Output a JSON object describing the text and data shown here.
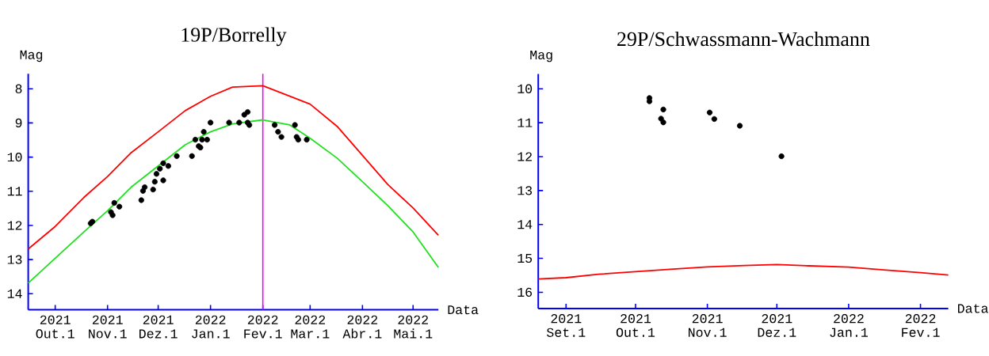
{
  "chart_data": [
    {
      "type": "scatter",
      "title": "19P/Borrelly",
      "xlabel": "Data",
      "ylabel": "Mag",
      "xlim": [
        "2021-09-15",
        "2022-05-16"
      ],
      "ylim": [
        14.47,
        7.56
      ],
      "xticks": [
        {
          "value": "2021-10-01",
          "label": "2021 Out.1"
        },
        {
          "value": "2021-11-01",
          "label": "2021 Nov.1"
        },
        {
          "value": "2021-12-01",
          "label": "2021 Dez.1"
        },
        {
          "value": "2022-01-01",
          "label": "2022 Jan.1"
        },
        {
          "value": "2022-02-01",
          "label": "2022 Fev.1"
        },
        {
          "value": "2022-03-01",
          "label": "2022 Mar.1"
        },
        {
          "value": "2022-04-01",
          "label": "2022 Abr.1"
        },
        {
          "value": "2022-05-01",
          "label": "2022 Mai.1"
        }
      ],
      "yticks": [
        8,
        9,
        10,
        11,
        12,
        13,
        14
      ],
      "ref_lines": [
        {
          "axis": "x",
          "value": "2022-02-01",
          "color": "#ff00ff"
        }
      ],
      "series": [
        {
          "type": "line",
          "marker": "none",
          "color": "#ff0000",
          "x": [
            "2021-09-15",
            "2021-10-01",
            "2021-10-18",
            "2021-11-01",
            "2021-11-15",
            "2021-12-01",
            "2021-12-17",
            "2022-01-01",
            "2022-01-14",
            "2022-02-01",
            "2022-02-17",
            "2022-03-01",
            "2022-03-17",
            "2022-04-01",
            "2022-04-16",
            "2022-05-01",
            "2022-05-16"
          ],
          "values": [
            12.69,
            12.03,
            11.18,
            10.57,
            9.87,
            9.26,
            8.64,
            8.22,
            7.95,
            7.91,
            8.22,
            8.45,
            9.1,
            9.95,
            10.8,
            11.49,
            12.29
          ]
        },
        {
          "type": "line",
          "marker": "none",
          "color": "#20e020",
          "x": [
            "2021-09-15",
            "2021-10-01",
            "2021-10-18",
            "2021-11-01",
            "2021-11-15",
            "2021-12-01",
            "2021-12-17",
            "2022-01-01",
            "2022-01-14",
            "2022-02-01",
            "2022-02-17",
            "2022-03-01",
            "2022-03-17",
            "2022-04-01",
            "2022-04-16",
            "2022-05-01",
            "2022-05-16"
          ],
          "values": [
            13.69,
            12.96,
            12.19,
            11.57,
            10.88,
            10.26,
            9.64,
            9.26,
            9.03,
            8.91,
            9.06,
            9.45,
            10.03,
            10.72,
            11.42,
            12.19,
            13.23
          ]
        },
        {
          "type": "scatter",
          "marker": "circle",
          "color": "#000000",
          "x": [
            "2021-10-22",
            "2021-10-23",
            "2021-11-03",
            "2021-11-04",
            "2021-11-05",
            "2021-11-08",
            "2021-11-21",
            "2021-11-22",
            "2021-11-23",
            "2021-11-28",
            "2021-11-29",
            "2021-11-30",
            "2021-12-02",
            "2021-12-04",
            "2021-12-04",
            "2021-12-07",
            "2021-12-12",
            "2021-12-21",
            "2021-12-23",
            "2021-12-25",
            "2021-12-26",
            "2021-12-27",
            "2021-12-28",
            "2021-12-30",
            "2022-01-01",
            "2022-01-12",
            "2022-01-18",
            "2022-01-21",
            "2022-01-23",
            "2022-01-23",
            "2022-01-24",
            "2022-02-08",
            "2022-02-10",
            "2022-02-12",
            "2022-02-20",
            "2022-02-21",
            "2022-02-22",
            "2022-02-27"
          ],
          "values": [
            11.94,
            11.89,
            11.61,
            11.7,
            11.34,
            11.45,
            11.26,
            10.99,
            10.88,
            10.95,
            10.72,
            10.49,
            10.34,
            10.18,
            10.68,
            10.26,
            9.97,
            9.97,
            9.49,
            9.68,
            9.72,
            9.49,
            9.26,
            9.49,
            8.99,
            8.99,
            8.99,
            8.76,
            8.68,
            8.99,
            9.06,
            9.06,
            9.26,
            9.41,
            9.06,
            9.41,
            9.49,
            9.49
          ]
        }
      ]
    },
    {
      "type": "scatter",
      "title": "29P/Schwassmann-Wachmann",
      "xlabel": "Data",
      "ylabel": "Mag",
      "xlim": [
        "2021-08-20",
        "2022-02-13"
      ],
      "ylim": [
        16.48,
        9.56
      ],
      "xticks": [
        {
          "value": "2021-09-01",
          "label": "2021 Set.1"
        },
        {
          "value": "2021-10-01",
          "label": "2021 Out.1"
        },
        {
          "value": "2021-11-01",
          "label": "2021 Nov.1"
        },
        {
          "value": "2021-12-01",
          "label": "2021 Dez.1"
        },
        {
          "value": "2022-01-01",
          "label": "2022 Jan.1"
        },
        {
          "value": "2022-02-01",
          "label": "2022 Fev.1"
        }
      ],
      "yticks": [
        10,
        11,
        12,
        13,
        14,
        15,
        16
      ],
      "series": [
        {
          "type": "line",
          "marker": "none",
          "color": "#ff0000",
          "x": [
            "2021-08-20",
            "2021-09-01",
            "2021-09-15",
            "2021-10-01",
            "2021-10-16",
            "2021-11-01",
            "2021-11-17",
            "2021-12-01",
            "2021-12-15",
            "2022-01-01",
            "2022-01-16",
            "2022-02-01",
            "2022-02-13"
          ],
          "values": [
            15.61,
            15.57,
            15.47,
            15.39,
            15.32,
            15.25,
            15.21,
            15.18,
            15.22,
            15.26,
            15.34,
            15.42,
            15.49
          ]
        },
        {
          "type": "scatter",
          "marker": "circle",
          "color": "#000000",
          "x": [
            "2021-10-07",
            "2021-10-07",
            "2021-10-12",
            "2021-10-13",
            "2021-10-13",
            "2021-11-02",
            "2021-11-04",
            "2021-11-15",
            "2021-12-03"
          ],
          "values": [
            10.27,
            10.37,
            10.88,
            10.61,
            10.99,
            10.7,
            10.89,
            11.09,
            11.99
          ]
        }
      ]
    }
  ]
}
